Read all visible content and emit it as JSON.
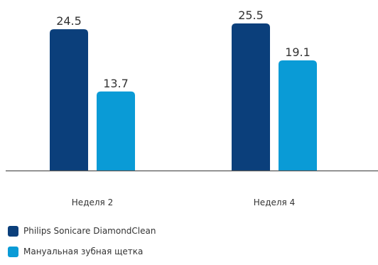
{
  "chart_data": {
    "type": "bar",
    "categories": [
      "Неделя 2",
      "Неделя 4"
    ],
    "series": [
      {
        "name": "Philips Sonicare DiamondClean",
        "values": [
          24.5,
          25.5
        ],
        "color": "#0b3f7b"
      },
      {
        "name": "Мануальная зубная щетка",
        "values": [
          13.7,
          19.1
        ],
        "color": "#0a9bd6"
      }
    ],
    "ylim": [
      0,
      25.5
    ],
    "title": "",
    "xlabel": "",
    "ylabel": "",
    "grid": false,
    "legend_position": "bottom-left",
    "axis_color": "#555555"
  }
}
